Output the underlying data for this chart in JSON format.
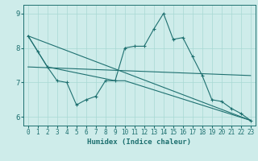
{
  "xlabel": "Humidex (Indice chaleur)",
  "bg_color": "#ceecea",
  "grid_color": "#a8d8d4",
  "line_color": "#1e7070",
  "xlim": [
    -0.5,
    23.5
  ],
  "ylim": [
    5.75,
    9.25
  ],
  "xticks": [
    0,
    1,
    2,
    3,
    4,
    5,
    6,
    7,
    8,
    9,
    10,
    11,
    12,
    13,
    14,
    15,
    16,
    17,
    18,
    19,
    20,
    21,
    22,
    23
  ],
  "yticks": [
    6,
    7,
    8,
    9
  ],
  "series1_x": [
    0,
    1,
    2,
    3,
    4,
    5,
    6,
    7,
    8,
    9,
    10,
    11,
    12,
    13,
    14,
    15,
    16,
    17,
    18,
    19,
    20,
    21,
    22,
    23
  ],
  "series1_y": [
    8.35,
    7.9,
    7.45,
    7.05,
    7.0,
    6.35,
    6.5,
    6.6,
    7.05,
    7.05,
    8.0,
    8.05,
    8.05,
    8.55,
    9.0,
    8.25,
    8.3,
    7.75,
    7.2,
    6.5,
    6.45,
    6.25,
    6.1,
    5.9
  ],
  "series2_x": [
    0,
    23
  ],
  "series2_y": [
    8.35,
    5.9
  ],
  "series3_x": [
    0,
    23
  ],
  "series3_y": [
    7.45,
    7.2
  ],
  "series4_x": [
    0,
    2,
    9,
    10,
    23
  ],
  "series4_y": [
    8.35,
    7.45,
    7.05,
    7.05,
    5.9
  ]
}
